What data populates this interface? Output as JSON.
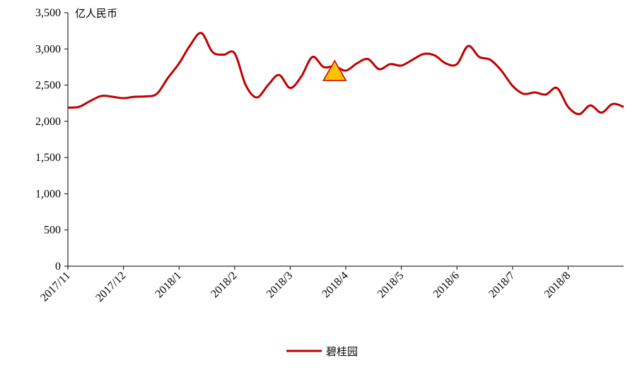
{
  "chart_data": {
    "type": "line",
    "y_label": "亿人民币",
    "categories": [
      "2017/11",
      null,
      null,
      null,
      null,
      "2017/12",
      null,
      null,
      null,
      null,
      "2018/1",
      null,
      null,
      null,
      null,
      "2018/2",
      null,
      null,
      null,
      null,
      "2018/3",
      null,
      null,
      null,
      null,
      "2018/4",
      null,
      null,
      null,
      null,
      "2018/5",
      null,
      null,
      null,
      null,
      "2018/6",
      null,
      null,
      null,
      null,
      "2018/7",
      null,
      null,
      null,
      null,
      "2018/8",
      null,
      null,
      null,
      null,
      null
    ],
    "series": [
      {
        "name": "碧桂园",
        "color": "#c00000",
        "values": [
          2190,
          2200,
          2280,
          2350,
          2340,
          2320,
          2340,
          2345,
          2380,
          2600,
          2800,
          3050,
          3220,
          2960,
          2920,
          2940,
          2500,
          2330,
          2500,
          2640,
          2460,
          2620,
          2890,
          2750,
          2760,
          2700,
          2800,
          2860,
          2720,
          2790,
          2770,
          2850,
          2930,
          2910,
          2800,
          2790,
          3040,
          2890,
          2850,
          2700,
          2490,
          2380,
          2400,
          2370,
          2460,
          2200,
          2100,
          2220,
          2120,
          2240,
          2200
        ]
      }
    ],
    "annotation": {
      "category_index": 24,
      "value": 2700,
      "color": "#ffc000",
      "shape": "triangle"
    },
    "ylim": [
      0,
      3500
    ],
    "yticks": [
      0,
      500,
      {
        "value": 1000,
        "label": "1,000"
      },
      {
        "value": 1500,
        "label": "1,500"
      },
      {
        "value": 2000,
        "label": "2,000"
      },
      {
        "value": 2500,
        "label": "2,500"
      },
      {
        "value": 3000,
        "label": "3,000"
      },
      {
        "value": 3500,
        "label": "3,500"
      }
    ],
    "grid": false,
    "legend": "bottom"
  }
}
